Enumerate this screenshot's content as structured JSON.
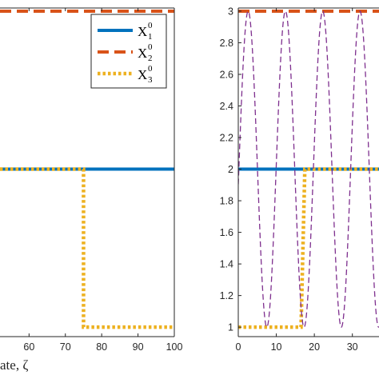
{
  "chart_data": [
    {
      "type": "line",
      "xlabel": "ate, ζ",
      "xlim": [
        52,
        100
      ],
      "ylim": [
        0.94,
        3.02
      ],
      "xticks": [
        60,
        70,
        80,
        90,
        100
      ],
      "yticks": [],
      "grid": false,
      "legend_placement": "top-right",
      "series": [
        {
          "name": "X",
          "sub": "1",
          "sup": "0",
          "color": "#0072BD",
          "style": "solid",
          "x": [
            52,
            100
          ],
          "y": [
            2,
            2
          ]
        },
        {
          "name": "X",
          "sub": "2",
          "sup": "0",
          "color": "#D95319",
          "style": "dashed",
          "x": [
            52,
            100
          ],
          "y": [
            3,
            3
          ]
        },
        {
          "name": "X",
          "sub": "3",
          "sup": "0",
          "color": "#EDB120",
          "style": "dotted",
          "x": [
            52,
            75,
            75,
            100
          ],
          "y": [
            2,
            2,
            1,
            1
          ]
        }
      ]
    },
    {
      "type": "line",
      "xlim": [
        0,
        37
      ],
      "ylim": [
        0.94,
        3.02
      ],
      "xticks": [
        0,
        10,
        20,
        30
      ],
      "yticks": [
        1,
        1.2,
        1.4,
        1.6,
        1.8,
        2,
        2.2,
        2.4,
        2.6,
        2.8,
        3
      ],
      "grid": false,
      "series": [
        {
          "color": "#0072BD",
          "style": "solid",
          "x": [
            0,
            37
          ],
          "y": [
            2,
            2
          ]
        },
        {
          "color": "#D95319",
          "style": "dashed",
          "x": [
            0,
            37
          ],
          "y": [
            3,
            3
          ]
        },
        {
          "color": "#EDB120",
          "style": "dotted",
          "x": [
            0,
            16.5,
            17.5,
            37
          ],
          "y": [
            1,
            1,
            2,
            2
          ]
        },
        {
          "color": "#7E2F8E",
          "style": "thin-dashed",
          "period": 9.8,
          "phase_x": 2.6,
          "x": [
            0,
            37
          ],
          "y": [
            1,
            3
          ]
        }
      ]
    }
  ]
}
